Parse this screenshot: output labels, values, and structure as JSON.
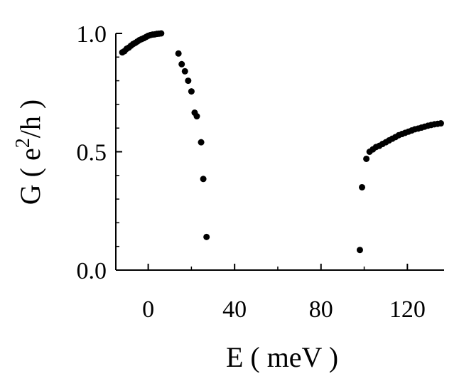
{
  "chart_data": {
    "type": "scatter",
    "xlabel": "E ( meV )",
    "ylabel": {
      "prefix": "G ( e",
      "superscript": "2",
      "suffix": "/h )"
    },
    "xlim": [
      -15,
      137
    ],
    "ylim": [
      0.0,
      1.0
    ],
    "xticks": [
      0,
      40,
      80,
      120
    ],
    "xtick_labels": [
      "0",
      "40",
      "80",
      "120"
    ],
    "yticks": [
      0.0,
      0.5,
      1.0
    ],
    "ytick_labels": [
      "0.0",
      "0.5",
      "1.0"
    ],
    "grid": false,
    "legend": "none",
    "marker_color": "#000000",
    "series": [
      {
        "x": [
          -12.0,
          -11.0,
          -10.0,
          -9.0,
          -8.0,
          -7.0,
          -6.0,
          -5.0,
          -4.0,
          -3.0,
          -2.0,
          -1.0,
          0.0,
          1.0,
          2.0,
          3.0,
          4.0,
          5.0,
          6.0,
          14.0,
          15.5,
          17.0,
          18.5,
          20.0,
          21.5,
          22.5,
          24.5,
          25.5,
          27.0,
          98.0,
          99.0,
          101.0,
          102.5,
          104.0,
          105.5,
          107.0,
          108.5,
          110.0,
          111.5,
          113.0,
          114.5,
          116.0,
          117.5,
          119.0,
          120.5,
          122.0,
          123.5,
          125.0,
          126.5,
          128.0,
          129.5,
          131.0,
          132.5,
          134.0,
          135.5
        ],
        "y": [
          0.92,
          0.925,
          0.935,
          0.94,
          0.948,
          0.955,
          0.96,
          0.966,
          0.972,
          0.976,
          0.98,
          0.985,
          0.99,
          0.993,
          0.995,
          0.996,
          0.998,
          0.999,
          1.0,
          0.915,
          0.87,
          0.84,
          0.8,
          0.755,
          0.665,
          0.65,
          0.54,
          0.385,
          0.14,
          0.085,
          0.35,
          0.47,
          0.5,
          0.51,
          0.52,
          0.525,
          0.533,
          0.54,
          0.548,
          0.555,
          0.562,
          0.57,
          0.575,
          0.58,
          0.585,
          0.59,
          0.595,
          0.598,
          0.602,
          0.606,
          0.61,
          0.613,
          0.616,
          0.618,
          0.62
        ]
      }
    ]
  }
}
